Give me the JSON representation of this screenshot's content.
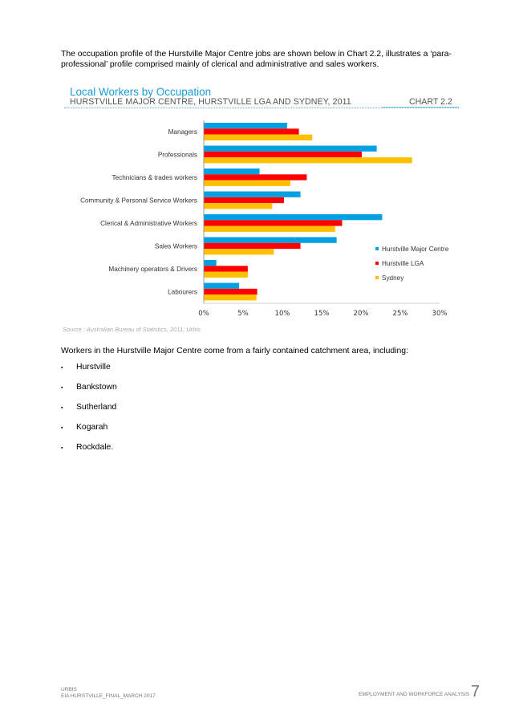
{
  "intro": "The occupation profile of the Hurstville Major Centre jobs are shown below in Chart 2.2, illustrates a ‘para-professional’ profile comprised mainly of clerical and administrative and sales workers.",
  "chart_header": {
    "title": "Local Workers by Occupation",
    "subtitle": "HURSTVILLE MAJOR CENTRE, HURSTVILLE LGA AND SYDNEY, 2011",
    "number": "CHART 2.2"
  },
  "chart_data": {
    "type": "bar",
    "orientation": "horizontal",
    "title": "Local Workers by Occupation",
    "categories": [
      "Managers",
      "Professionals",
      "Technicians & trades workers",
      "Community & Personal Service Workers",
      "Clerical & Administrative Workers",
      "Sales Workers",
      "Machinery operators & Drivers",
      "Labourers"
    ],
    "series": [
      {
        "name": "Hurstville Major Centre",
        "color": "#00a0e3",
        "values": [
          10.6,
          22.0,
          7.1,
          12.3,
          22.7,
          16.9,
          1.6,
          4.5
        ]
      },
      {
        "name": "Hurstville LGA",
        "color": "#ff0000",
        "values": [
          12.1,
          20.1,
          13.1,
          10.2,
          17.6,
          12.3,
          5.6,
          6.8
        ]
      },
      {
        "name": "Sydney",
        "color": "#ffc000",
        "values": [
          13.8,
          26.5,
          11.0,
          8.7,
          16.7,
          8.9,
          5.6,
          6.7
        ]
      }
    ],
    "xlim": [
      0,
      30
    ],
    "ticks": [
      "0%",
      "5%",
      "10%",
      "15%",
      "20%",
      "25%",
      "30%"
    ],
    "legend": "right",
    "grid": false
  },
  "source": "Source : Australian Bureau of Statistics, 2011; Urbis",
  "catchment_intro": "Workers in the Hurstville Major Centre come from a fairly contained catchment area, including:",
  "bullet_char": "▪",
  "catchments": [
    "Hurstville",
    "Bankstown",
    "Sutherland",
    "Kogarah",
    "Rockdale."
  ],
  "footer": {
    "company": "URBIS",
    "doc": "EIA HURSTVILLE_FINAL_MARCH 2017",
    "section": "EMPLOYMENT AND WORKFORCE ANALYSIS",
    "page": "7"
  }
}
